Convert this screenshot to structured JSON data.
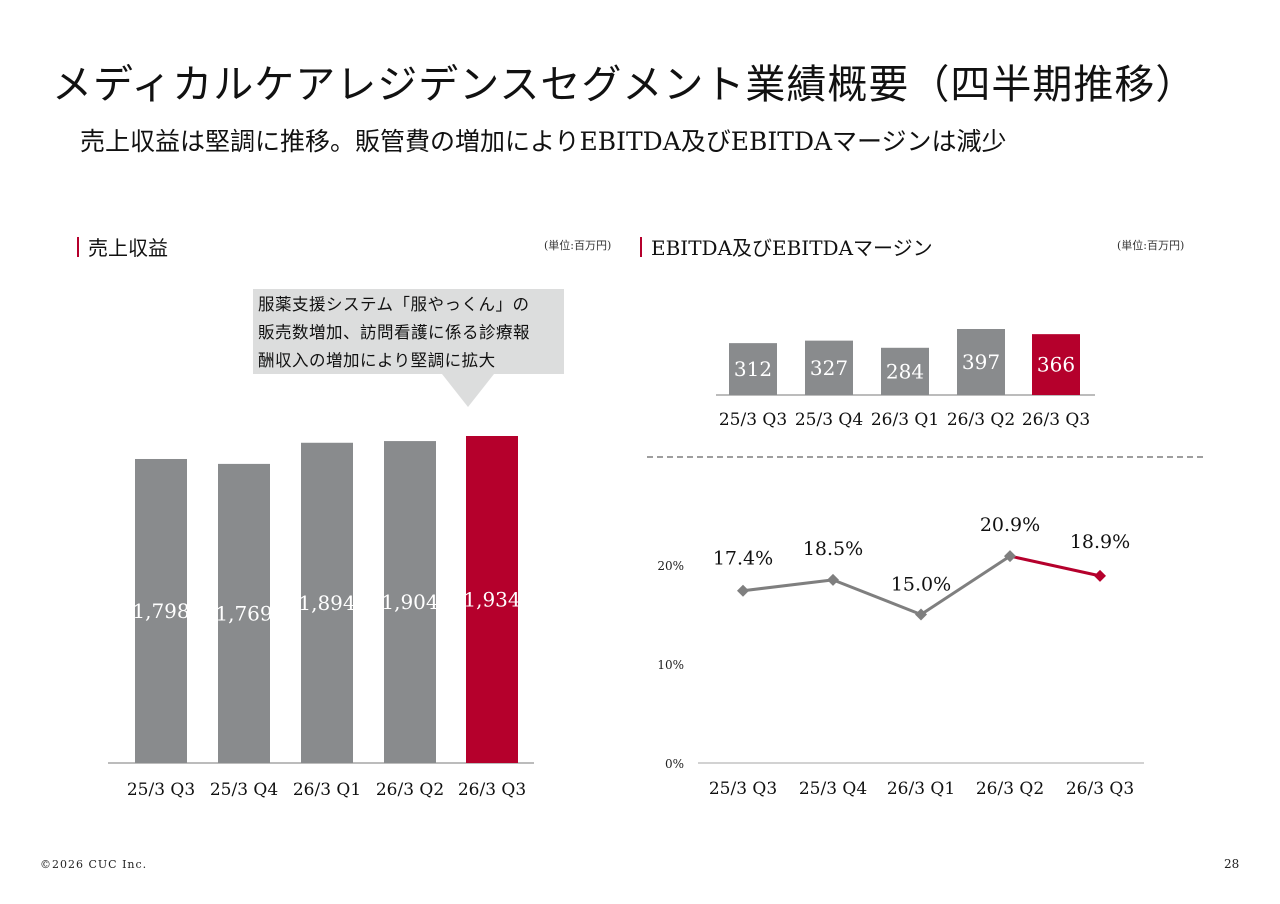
{
  "header": {
    "title": "メディカルケアレジデンスセグメント業績概要（四半期推移）",
    "subtitle": "売上収益は堅調に推移。販管費の増加によりEBITDA及びEBITDAマージンは減少"
  },
  "revenue_section": {
    "title": "売上収益",
    "unit": "(単位:百万円)",
    "callout_lines": [
      "服薬支援システム「服やっくん」の",
      "販売数増加、訪問看護に係る診療報",
      "酬収入の増加により堅調に拡大"
    ]
  },
  "ebitda_section": {
    "title": "EBITDA及びEBITDAマージン",
    "unit": "(単位:百万円)"
  },
  "colors": {
    "bar_gray": "#898b8d",
    "accent_red": "#b5002c",
    "line_gray": "#7f7f7f",
    "axis_gray": "#a6a6a6",
    "callout_bg": "#dcdddd"
  },
  "footer": {
    "copyright": "©2026 CUC Inc.",
    "page_number": "28"
  },
  "chart_data": [
    {
      "type": "bar",
      "title": "売上収益",
      "categories": [
        "25/3 Q3",
        "25/3 Q4",
        "26/3 Q1",
        "26/3 Q2",
        "26/3 Q3"
      ],
      "values": [
        1798,
        1769,
        1894,
        1904,
        1934
      ],
      "labels": [
        "1,798",
        "1,769",
        "1,894",
        "1,904",
        "1,934"
      ],
      "highlight_index": 4,
      "ylim": [
        0,
        1934
      ],
      "unit": "百万円",
      "grid": false
    },
    {
      "type": "bar",
      "title": "EBITDA",
      "categories": [
        "25/3 Q3",
        "25/3 Q4",
        "26/3 Q1",
        "26/3 Q2",
        "26/3 Q3"
      ],
      "values": [
        312,
        327,
        284,
        397,
        366
      ],
      "labels": [
        "312",
        "327",
        "284",
        "397",
        "366"
      ],
      "highlight_index": 4,
      "ylim": [
        0,
        397
      ],
      "unit": "百万円",
      "grid": false
    },
    {
      "type": "line",
      "title": "EBITDAマージン",
      "categories": [
        "25/3 Q3",
        "25/3 Q4",
        "26/3 Q1",
        "26/3 Q2",
        "26/3 Q3"
      ],
      "values": [
        17.4,
        18.5,
        15.0,
        20.9,
        18.9
      ],
      "labels": [
        "17.4%",
        "18.5%",
        "15.0%",
        "20.9%",
        "18.9%"
      ],
      "highlight_index": 4,
      "ylim": [
        0,
        20
      ],
      "yticks": [
        "0%",
        "10%",
        "20%"
      ],
      "ytick_values": [
        0,
        10,
        20
      ],
      "grid": false
    }
  ]
}
